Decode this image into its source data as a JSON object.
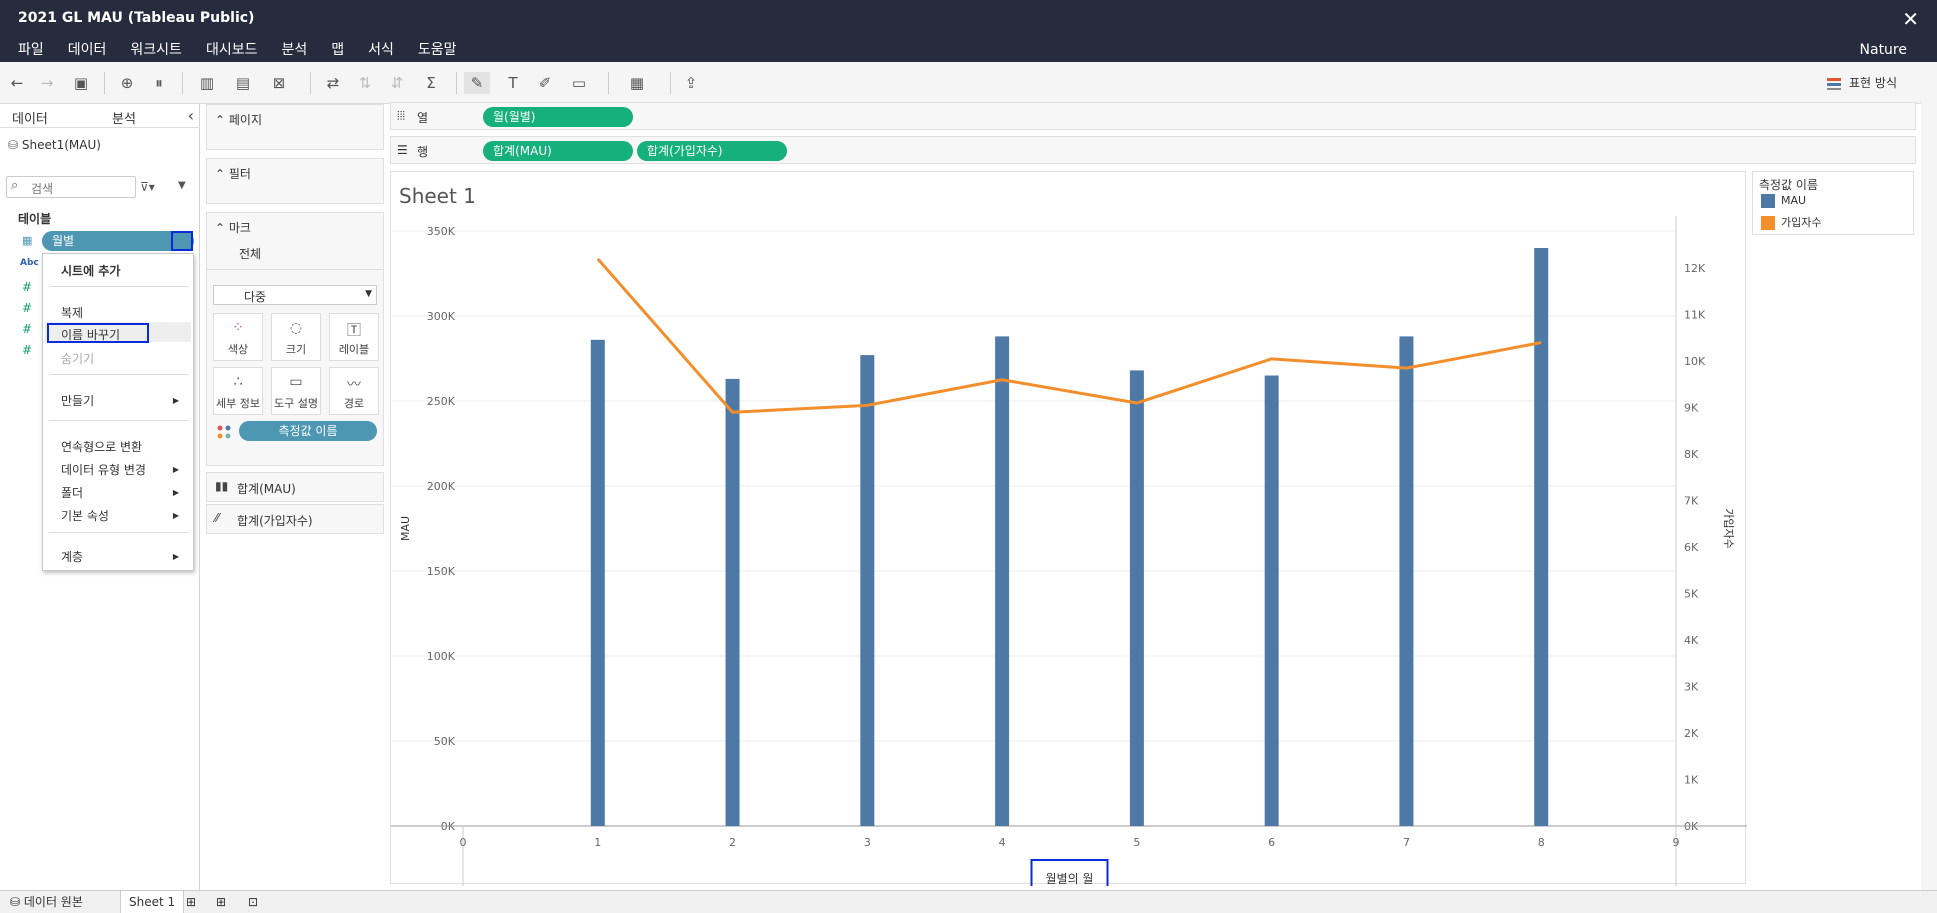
{
  "window": {
    "title": "2021 GL MAU (Tableau Public)",
    "close_icon": "close-icon",
    "workbook_theme": "Nature"
  },
  "menu": [
    "파일",
    "데이터",
    "워크시트",
    "대시보드",
    "분석",
    "맵",
    "서식",
    "도움말"
  ],
  "toolbar": {
    "show_me": "표현 방식"
  },
  "data_pane": {
    "tab_data": "데이터",
    "tab_analysis": "분석",
    "datasource": "Sheet1(MAU)",
    "search_placeholder": "검색",
    "tables_label": "테이블",
    "field_month": "월별",
    "abc_label": "Abc"
  },
  "context_menu": {
    "add_to_sheet": "시트에 추가",
    "duplicate": "복제",
    "rename": "이름 바꾸기",
    "hide": "숨기기",
    "create": "만들기",
    "convert_continuous": "연속형으로 변환",
    "change_data_type": "데이터 유형 변경",
    "folder": "폴더",
    "default_properties": "기본 속성",
    "hierarchy": "계층"
  },
  "shelves": {
    "pages": "페이지",
    "filters": "필터",
    "marks": "마크",
    "all": "전체",
    "mark_type": "다중",
    "color": "색상",
    "size": "크기",
    "label": "레이블",
    "detail": "세부 정보",
    "tooltip": "도구 설명",
    "path": "경로",
    "measure_names_pill": "측정값 이름",
    "sum_mau": "합계(MAU)",
    "sum_signups": "합계(가입자수)"
  },
  "columns_shelf": {
    "label": "열",
    "pill": "월(월별)"
  },
  "rows_shelf": {
    "label": "행",
    "pill1": "합계(MAU)",
    "pill2": "합계(가입자수)"
  },
  "sheet": {
    "title": "Sheet 1"
  },
  "legend": {
    "title": "측정값 이름",
    "items": [
      "MAU",
      "가입자수"
    ]
  },
  "bottom_tabs": {
    "datasource": "데이터 원본",
    "sheet1": "Sheet 1"
  },
  "colors": {
    "bar": "#4e79a7",
    "line": "#f28e2b",
    "pill_green": "#16b07c",
    "pill_blue": "#4d97b3",
    "title_bg": "#262c3e"
  },
  "chart_data": {
    "type": "bar",
    "x": [
      1,
      2,
      3,
      4,
      5,
      6,
      7,
      8
    ],
    "x_ticks": [
      0,
      1,
      2,
      3,
      4,
      5,
      6,
      7,
      8,
      9
    ],
    "xlabel": "월별의 월",
    "ylabel": "MAU",
    "y2label": "가입자수",
    "ylim": [
      0,
      350000
    ],
    "y2lim": [
      0,
      12800
    ],
    "y_ticks": [
      "0K",
      "50K",
      "100K",
      "150K",
      "200K",
      "250K",
      "300K",
      "350K"
    ],
    "y2_ticks": [
      "0K",
      "1K",
      "2K",
      "3K",
      "4K",
      "5K",
      "6K",
      "7K",
      "8K",
      "9K",
      "10K",
      "11K",
      "12K"
    ],
    "series": [
      {
        "name": "MAU",
        "type": "bar",
        "axis": "left",
        "values": [
          286000,
          263000,
          277000,
          288000,
          268000,
          265000,
          288000,
          340000
        ]
      },
      {
        "name": "가입자수",
        "type": "line",
        "axis": "right",
        "values": [
          12200,
          8900,
          9050,
          9600,
          9100,
          10050,
          9850,
          10400
        ]
      }
    ],
    "grid": true
  }
}
